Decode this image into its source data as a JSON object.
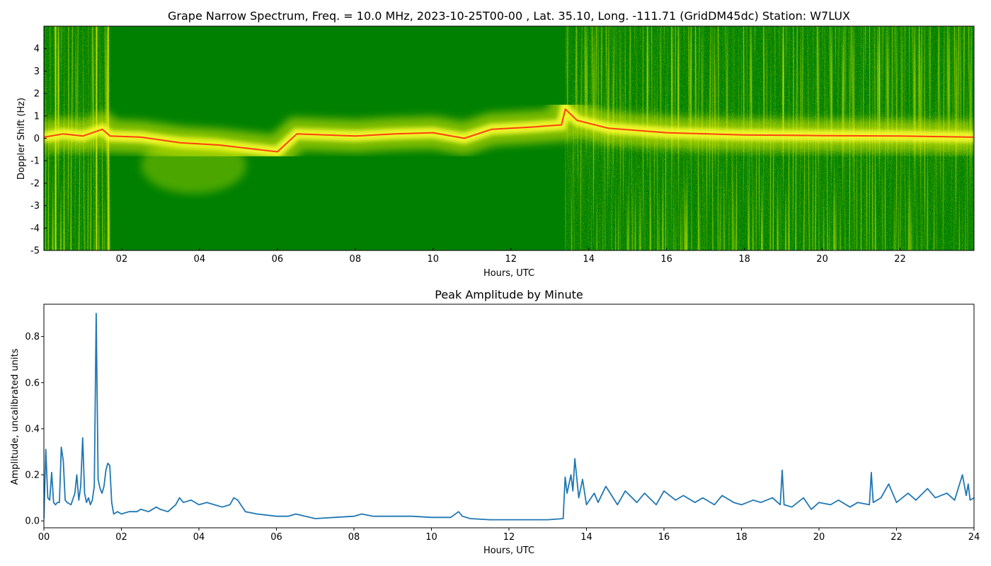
{
  "chart_data": [
    {
      "type": "heatmap",
      "title": "Grape Narrow Spectrum, Freq. = 10.0 MHz, 2023-10-25T00-00 , Lat.  35.10, Long. -111.71 (GridDM45dc) Station: W7LUX",
      "xlabel": "Hours, UTC",
      "ylabel": "Doppler Shift (Hz)",
      "xlim": [
        0,
        23.9
      ],
      "ylim": [
        -5,
        5
      ],
      "x_ticks": [
        2,
        4,
        6,
        8,
        10,
        12,
        14,
        16,
        18,
        20,
        22
      ],
      "x_tick_labels": [
        "02",
        "04",
        "06",
        "08",
        "10",
        "12",
        "14",
        "16",
        "18",
        "20",
        "22"
      ],
      "y_ticks": [
        -5,
        -4,
        -3,
        -2,
        -1,
        0,
        1,
        2,
        3,
        4
      ],
      "colors": {
        "low": "#008000",
        "mid": "#ffff00",
        "high": "#ff2000"
      },
      "ridge_hz": [
        [
          0.0,
          0.05
        ],
        [
          0.5,
          0.2
        ],
        [
          1.0,
          0.1
        ],
        [
          1.5,
          0.4
        ],
        [
          1.7,
          0.1
        ],
        [
          2.5,
          0.05
        ],
        [
          3.5,
          -0.2
        ],
        [
          4.5,
          -0.3
        ],
        [
          5.5,
          -0.5
        ],
        [
          6.0,
          -0.6
        ],
        [
          6.5,
          0.2
        ],
        [
          8.0,
          0.1
        ],
        [
          9.0,
          0.2
        ],
        [
          10.0,
          0.25
        ],
        [
          10.8,
          0.0
        ],
        [
          11.5,
          0.4
        ],
        [
          12.5,
          0.5
        ],
        [
          13.3,
          0.6
        ],
        [
          13.4,
          1.3
        ],
        [
          13.7,
          0.8
        ],
        [
          14.5,
          0.45
        ],
        [
          16.0,
          0.25
        ],
        [
          18.0,
          0.15
        ],
        [
          20.0,
          0.12
        ],
        [
          22.0,
          0.1
        ],
        [
          23.9,
          0.05
        ]
      ]
    },
    {
      "type": "line",
      "title": "Peak Amplitude by Minute",
      "xlabel": "Hours, UTC",
      "ylabel": "Amplitude, uncalibrated units",
      "xlim": [
        0,
        24
      ],
      "ylim": [
        -0.03,
        0.94
      ],
      "x_ticks": [
        0,
        2,
        4,
        6,
        8,
        10,
        12,
        14,
        16,
        18,
        20,
        22,
        24
      ],
      "x_tick_labels": [
        "00",
        "02",
        "04",
        "06",
        "08",
        "10",
        "12",
        "14",
        "16",
        "18",
        "20",
        "22",
        "24"
      ],
      "y_ticks": [
        0.0,
        0.2,
        0.4,
        0.6,
        0.8
      ],
      "y_tick_labels": [
        "0.0",
        "0.2",
        "0.4",
        "0.6",
        "0.8"
      ],
      "color": "#1f77b4",
      "series": [
        {
          "x": [
            0.0,
            0.05,
            0.1,
            0.15,
            0.2,
            0.25,
            0.3,
            0.35,
            0.4,
            0.45,
            0.5,
            0.55,
            0.6,
            0.7,
            0.8,
            0.85,
            0.9,
            0.95,
            1.0,
            1.05,
            1.1,
            1.15,
            1.2,
            1.25,
            1.3,
            1.35,
            1.4,
            1.45,
            1.5,
            1.55,
            1.6,
            1.65,
            1.7,
            1.75,
            1.8,
            1.9,
            2.0,
            2.2,
            2.4,
            2.5,
            2.7,
            2.9,
            3.0,
            3.2,
            3.4,
            3.5,
            3.6,
            3.8,
            4.0,
            4.2,
            4.4,
            4.6,
            4.8,
            4.9,
            5.0,
            5.2,
            5.5,
            6.0,
            6.3,
            6.5,
            7.0,
            7.5,
            8.0,
            8.2,
            8.5,
            9.0,
            9.5,
            10.0,
            10.5,
            10.7,
            10.8,
            11.0,
            11.5,
            12.0,
            12.5,
            13.0,
            13.4,
            13.45,
            13.5,
            13.6,
            13.65,
            13.7,
            13.8,
            13.9,
            14.0,
            14.2,
            14.3,
            14.5,
            14.8,
            15.0,
            15.3,
            15.5,
            15.8,
            16.0,
            16.3,
            16.5,
            16.8,
            17.0,
            17.3,
            17.5,
            17.8,
            18.0,
            18.3,
            18.5,
            18.8,
            19.0,
            19.05,
            19.1,
            19.3,
            19.6,
            19.8,
            20.0,
            20.3,
            20.5,
            20.8,
            21.0,
            21.3,
            21.35,
            21.4,
            21.6,
            21.8,
            22.0,
            22.3,
            22.5,
            22.8,
            23.0,
            23.3,
            23.5,
            23.7,
            23.8,
            23.85,
            23.9,
            24.0
          ],
          "y": [
            0.01,
            0.31,
            0.1,
            0.09,
            0.21,
            0.08,
            0.07,
            0.08,
            0.08,
            0.32,
            0.26,
            0.09,
            0.08,
            0.07,
            0.12,
            0.2,
            0.09,
            0.15,
            0.36,
            0.12,
            0.08,
            0.1,
            0.07,
            0.09,
            0.15,
            0.9,
            0.18,
            0.14,
            0.12,
            0.15,
            0.22,
            0.25,
            0.24,
            0.08,
            0.03,
            0.04,
            0.03,
            0.04,
            0.04,
            0.05,
            0.04,
            0.06,
            0.05,
            0.04,
            0.07,
            0.1,
            0.08,
            0.09,
            0.07,
            0.08,
            0.07,
            0.06,
            0.07,
            0.1,
            0.09,
            0.04,
            0.03,
            0.02,
            0.02,
            0.03,
            0.01,
            0.015,
            0.02,
            0.03,
            0.02,
            0.02,
            0.02,
            0.015,
            0.015,
            0.04,
            0.02,
            0.01,
            0.005,
            0.005,
            0.005,
            0.005,
            0.01,
            0.19,
            0.12,
            0.2,
            0.13,
            0.27,
            0.1,
            0.18,
            0.07,
            0.12,
            0.08,
            0.15,
            0.07,
            0.13,
            0.08,
            0.12,
            0.07,
            0.13,
            0.09,
            0.11,
            0.08,
            0.1,
            0.07,
            0.11,
            0.08,
            0.07,
            0.09,
            0.08,
            0.1,
            0.07,
            0.22,
            0.07,
            0.06,
            0.1,
            0.05,
            0.08,
            0.07,
            0.09,
            0.06,
            0.08,
            0.07,
            0.21,
            0.08,
            0.1,
            0.16,
            0.08,
            0.12,
            0.09,
            0.14,
            0.1,
            0.12,
            0.09,
            0.2,
            0.11,
            0.16,
            0.09,
            0.1
          ]
        }
      ]
    }
  ]
}
